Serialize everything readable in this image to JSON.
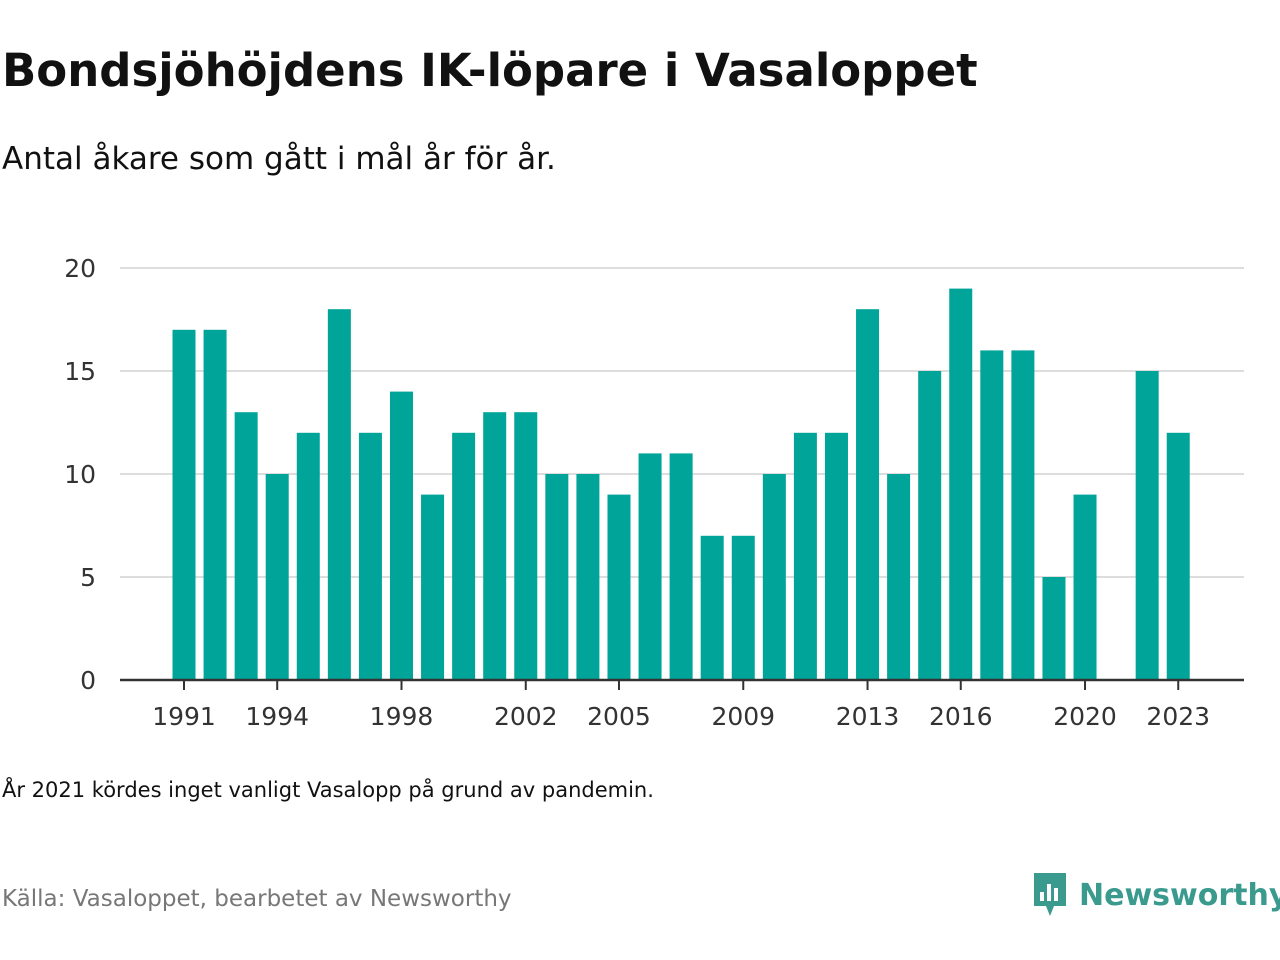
{
  "header": {
    "title": "Bondsjöhöjdens IK-löpare i Vasaloppet",
    "subtitle": "Antal åkare som gått i mål år för år."
  },
  "footer": {
    "note": "År 2021 kördes inget vanligt Vasalopp på grund av pandemin.",
    "source": "Källa: Vasaloppet, bearbetet av Newsworthy",
    "brand": "Newsworthy",
    "brand_icon": "newsworthy-logo-icon"
  },
  "colors": {
    "bar": "#00a499",
    "grid": "#dddddd",
    "axis": "#333333",
    "brand": "#3a9a8e"
  },
  "chart_data": {
    "type": "bar",
    "title": "Bondsjöhöjdens IK-löpare i Vasaloppet",
    "subtitle": "Antal åkare som gått i mål år för år.",
    "categories": [
      1991,
      1992,
      1993,
      1994,
      1995,
      1996,
      1997,
      1998,
      1999,
      2000,
      2001,
      2002,
      2003,
      2004,
      2005,
      2006,
      2007,
      2008,
      2009,
      2010,
      2011,
      2012,
      2013,
      2014,
      2015,
      2016,
      2017,
      2018,
      2019,
      2020,
      2021,
      2022,
      2023
    ],
    "values": [
      17,
      17,
      13,
      10,
      12,
      18,
      12,
      14,
      9,
      12,
      13,
      13,
      10,
      10,
      9,
      11,
      11,
      7,
      7,
      10,
      12,
      12,
      18,
      10,
      15,
      19,
      16,
      16,
      5,
      9,
      null,
      15,
      12
    ],
    "xticks": [
      1991,
      1994,
      1998,
      2002,
      2005,
      2009,
      2013,
      2016,
      2020,
      2023
    ],
    "yticks": [
      0,
      5,
      10,
      15,
      20
    ],
    "ylim": [
      0,
      20
    ],
    "xlabel": "",
    "ylabel": "",
    "grid": true,
    "legend": "none"
  }
}
